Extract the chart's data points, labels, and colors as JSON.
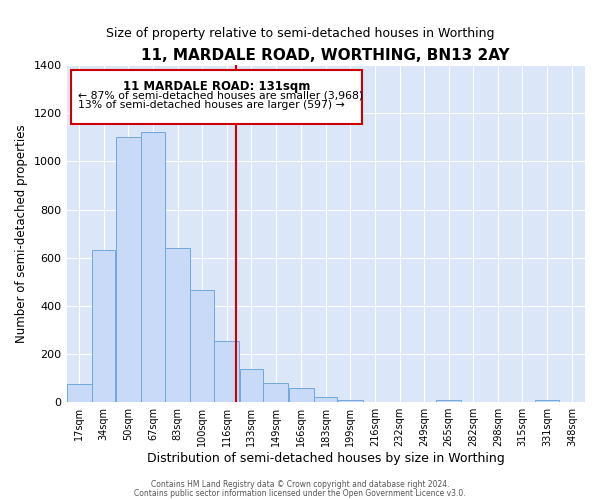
{
  "title": "11, MARDALE ROAD, WORTHING, BN13 2AY",
  "subtitle": "Size of property relative to semi-detached houses in Worthing",
  "xlabel": "Distribution of semi-detached houses by size in Worthing",
  "ylabel": "Number of semi-detached properties",
  "bin_labels": [
    "17sqm",
    "34sqm",
    "50sqm",
    "67sqm",
    "83sqm",
    "100sqm",
    "116sqm",
    "133sqm",
    "149sqm",
    "166sqm",
    "183sqm",
    "199sqm",
    "216sqm",
    "232sqm",
    "249sqm",
    "265sqm",
    "282sqm",
    "298sqm",
    "315sqm",
    "331sqm",
    "348sqm"
  ],
  "bar_heights": [
    75,
    630,
    1100,
    1120,
    640,
    465,
    255,
    138,
    78,
    58,
    20,
    10,
    0,
    0,
    0,
    10,
    0,
    0,
    0,
    10,
    0
  ],
  "bar_color": "#c9daf8",
  "bar_edge_color": "#6fa8dc",
  "property_label": "11 MARDALE ROAD: 131sqm",
  "smaller_pct": 87,
  "smaller_count": 3968,
  "larger_pct": 13,
  "larger_count": 597,
  "vline_x": 131,
  "vline_color": "#cc0000",
  "ylim": [
    0,
    1400
  ],
  "yticks": [
    0,
    200,
    400,
    600,
    800,
    1000,
    1200,
    1400
  ],
  "bin_edges": [
    17,
    34,
    50,
    67,
    83,
    100,
    116,
    133,
    149,
    166,
    183,
    199,
    216,
    232,
    249,
    265,
    282,
    298,
    315,
    331,
    348,
    365
  ],
  "xlim": [
    17,
    365
  ],
  "background_color": "#dce6f9",
  "bar_color_light": "#c9daf8",
  "footer1": "Contains HM Land Registry data © Crown copyright and database right 2024.",
  "footer2": "Contains public sector information licensed under the Open Government Licence v3.0.",
  "annotation_box_edge": "#cc0000",
  "title_fontsize": 11,
  "subtitle_fontsize": 9,
  "xlabel_fontsize": 9,
  "ylabel_fontsize": 8.5,
  "tick_fontsize": 8,
  "xtick_fontsize": 7
}
